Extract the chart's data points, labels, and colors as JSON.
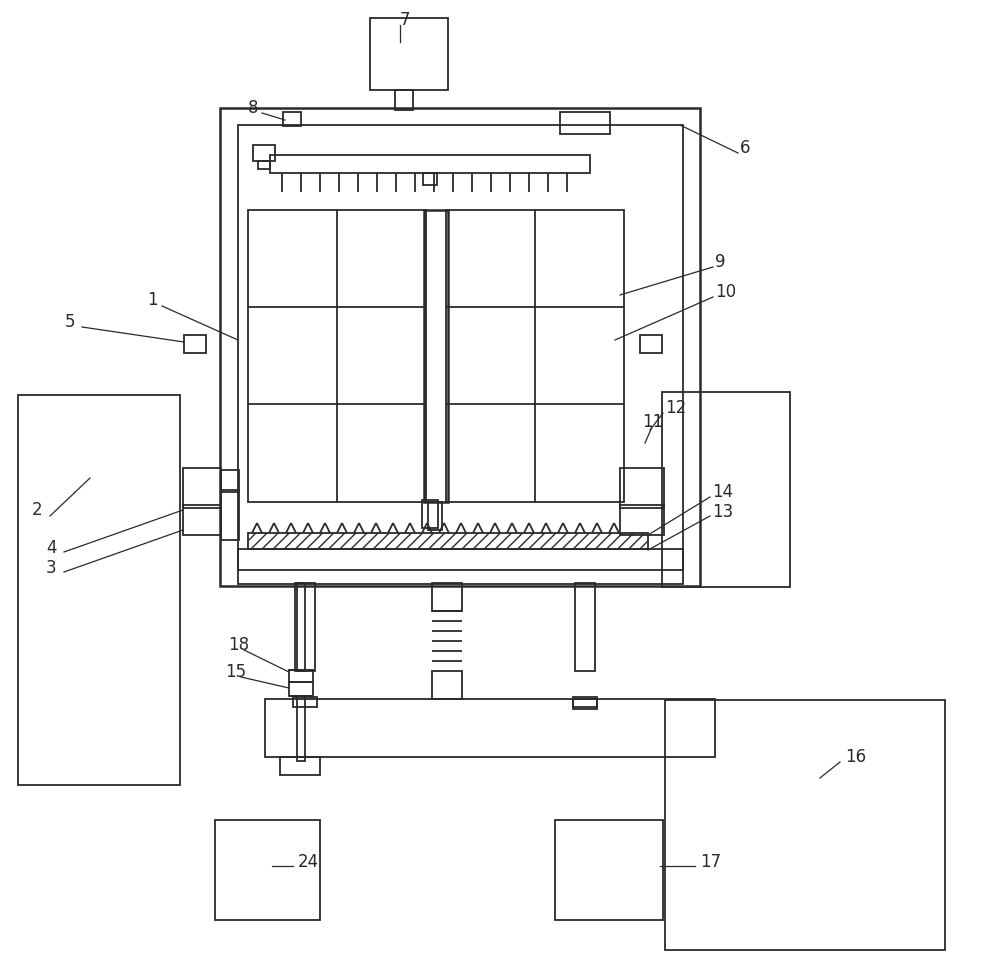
{
  "bg_color": "#ffffff",
  "line_color": "#2a2a2a",
  "lw": 1.3,
  "tlw": 1.8,
  "fig_width": 10.0,
  "fig_height": 9.77
}
